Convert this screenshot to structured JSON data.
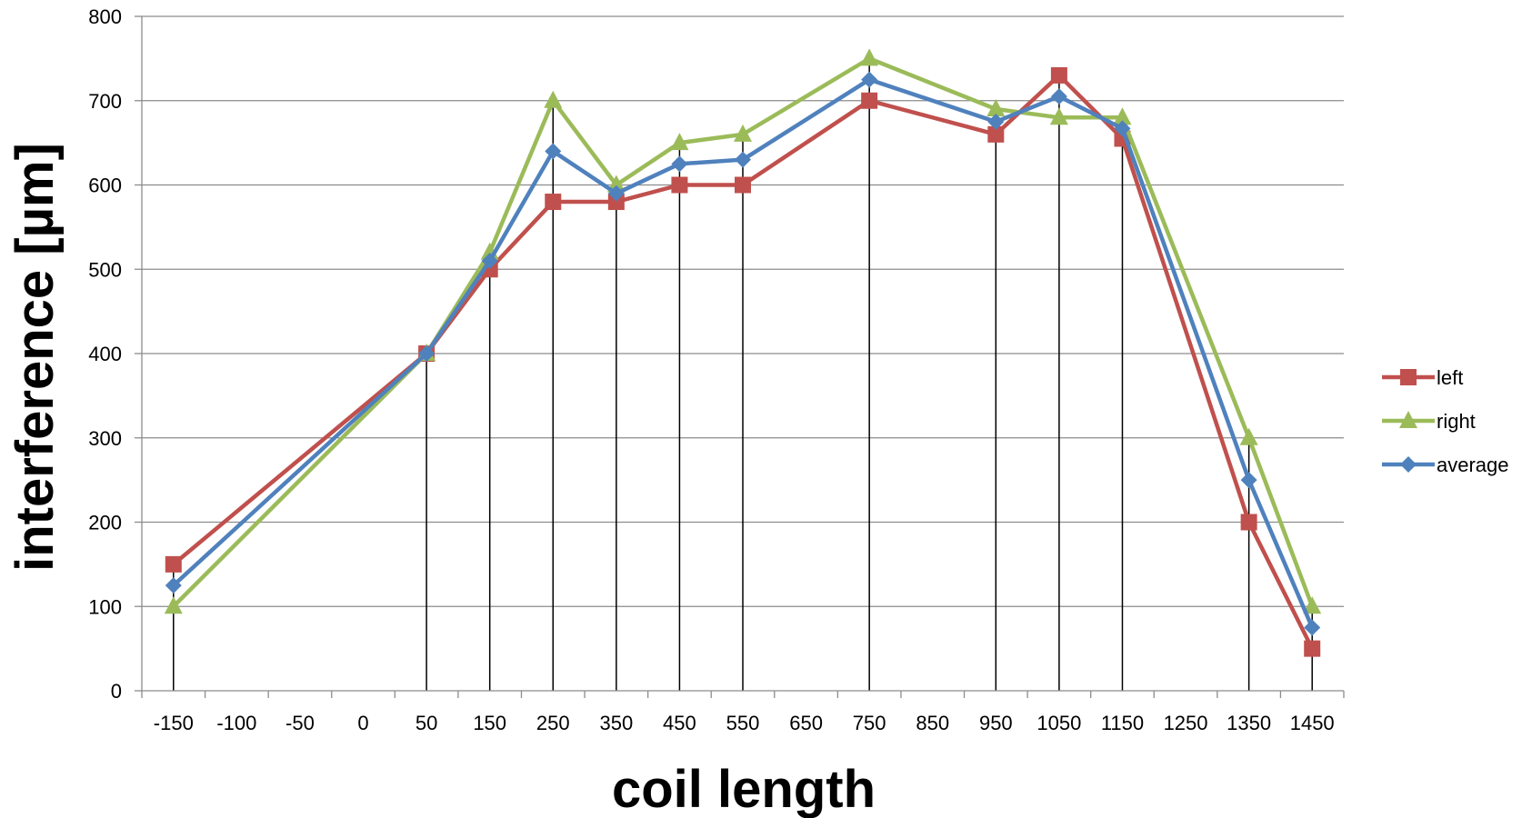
{
  "chart_data": {
    "type": "line",
    "title": "",
    "xlabel": "coil length",
    "ylabel": "interference [µm]",
    "categories": [
      "-150",
      "-100",
      "-50",
      "0",
      "50",
      "150",
      "250",
      "350",
      "450",
      "550",
      "650",
      "750",
      "850",
      "950",
      "1050",
      "1150",
      "1250",
      "1350",
      "1450"
    ],
    "ylim": [
      0,
      800
    ],
    "yticks": [
      0,
      100,
      200,
      300,
      400,
      500,
      600,
      700,
      800
    ],
    "grid": "horizontal",
    "legend_position": "right",
    "series": [
      {
        "name": "left",
        "color": "#C0504D",
        "marker": "square",
        "points": [
          {
            "x": "-150",
            "y": 150
          },
          {
            "x": "50",
            "y": 400
          },
          {
            "x": "150",
            "y": 500
          },
          {
            "x": "250",
            "y": 580
          },
          {
            "x": "350",
            "y": 580
          },
          {
            "x": "450",
            "y": 600
          },
          {
            "x": "550",
            "y": 600
          },
          {
            "x": "750",
            "y": 700
          },
          {
            "x": "950",
            "y": 660
          },
          {
            "x": "1050",
            "y": 730
          },
          {
            "x": "1150",
            "y": 655
          },
          {
            "x": "1350",
            "y": 200
          },
          {
            "x": "1450",
            "y": 50
          }
        ]
      },
      {
        "name": "right",
        "color": "#9BBB59",
        "marker": "triangle",
        "points": [
          {
            "x": "-150",
            "y": 100
          },
          {
            "x": "50",
            "y": 400
          },
          {
            "x": "150",
            "y": 520
          },
          {
            "x": "250",
            "y": 700
          },
          {
            "x": "350",
            "y": 600
          },
          {
            "x": "450",
            "y": 650
          },
          {
            "x": "550",
            "y": 660
          },
          {
            "x": "750",
            "y": 750
          },
          {
            "x": "950",
            "y": 690
          },
          {
            "x": "1050",
            "y": 680
          },
          {
            "x": "1150",
            "y": 680
          },
          {
            "x": "1350",
            "y": 300
          },
          {
            "x": "1450",
            "y": 100
          }
        ]
      },
      {
        "name": "average",
        "color": "#4F81BD",
        "marker": "diamond",
        "points": [
          {
            "x": "-150",
            "y": 125
          },
          {
            "x": "50",
            "y": 400
          },
          {
            "x": "150",
            "y": 510
          },
          {
            "x": "250",
            "y": 640
          },
          {
            "x": "350",
            "y": 590
          },
          {
            "x": "450",
            "y": 625
          },
          {
            "x": "550",
            "y": 630
          },
          {
            "x": "750",
            "y": 725
          },
          {
            "x": "950",
            "y": 675
          },
          {
            "x": "1050",
            "y": 705
          },
          {
            "x": "1150",
            "y": 667
          },
          {
            "x": "1350",
            "y": 250
          },
          {
            "x": "1450",
            "y": 75
          }
        ]
      }
    ],
    "drop_lines_at": [
      "-150",
      "50",
      "150",
      "250",
      "350",
      "450",
      "550",
      "750",
      "950",
      "1050",
      "1150",
      "1350",
      "1450"
    ]
  }
}
